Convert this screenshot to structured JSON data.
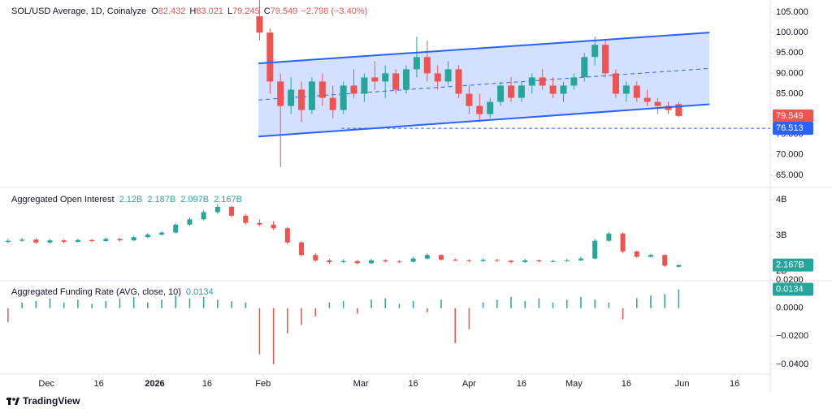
{
  "x_axis": {
    "xlim": [
      -13.3,
      207.2
    ],
    "xticks": [
      {
        "value": 0,
        "label": "Dec"
      },
      {
        "value": 15,
        "label": "16"
      },
      {
        "value": 31,
        "label": "2026"
      },
      {
        "value": 46,
        "label": "16"
      },
      {
        "value": 62,
        "label": "Feb"
      },
      {
        "value": 90,
        "label": "Mar"
      },
      {
        "value": 105,
        "label": "16"
      },
      {
        "value": 121,
        "label": "Apr"
      },
      {
        "value": 136,
        "label": "16"
      },
      {
        "value": 151,
        "label": "May"
      },
      {
        "value": 166,
        "label": "16"
      },
      {
        "value": 182,
        "label": "Jun"
      },
      {
        "value": 197,
        "label": "16"
      }
    ]
  },
  "chart_data": [
    {
      "type": "candlestick",
      "title": "SOL/USD Average, 1D, Coinalyze",
      "legend_keys": [
        "O",
        "H",
        "L",
        "C"
      ],
      "change": "−2.798 (−3.40%)",
      "up_color": "#26a69a",
      "down_color": "#ef5350",
      "x": [
        61,
        64,
        67,
        70,
        73,
        76,
        79,
        82,
        85,
        88,
        91,
        94,
        97,
        100,
        103,
        106,
        109,
        112,
        115,
        118,
        121,
        124,
        127,
        130,
        133,
        136,
        139,
        142,
        145,
        148,
        151,
        154,
        157,
        160,
        163,
        166,
        169,
        172,
        175,
        178,
        181
      ],
      "ohlc": [
        [
          104,
          108,
          98,
          100
        ],
        [
          100,
          101,
          85,
          88
        ],
        [
          88,
          90,
          67,
          82
        ],
        [
          82,
          89,
          80,
          86
        ],
        [
          86,
          88,
          78,
          81
        ],
        [
          81,
          89,
          80,
          88
        ],
        [
          88,
          90,
          82,
          84
        ],
        [
          84,
          87,
          79,
          81
        ],
        [
          81,
          88,
          80,
          87
        ],
        [
          87,
          91,
          84,
          85
        ],
        [
          85,
          90,
          83,
          89
        ],
        [
          89,
          93,
          86,
          88
        ],
        [
          88,
          92,
          84,
          90
        ],
        [
          90,
          91,
          85,
          86
        ],
        [
          86,
          92,
          85,
          91
        ],
        [
          91,
          99,
          89,
          94
        ],
        [
          94,
          98,
          88,
          90
        ],
        [
          90,
          92,
          86,
          88
        ],
        [
          88,
          93,
          87,
          91
        ],
        [
          91,
          92,
          84,
          85
        ],
        [
          85,
          87,
          80,
          82
        ],
        [
          82,
          85,
          78,
          80
        ],
        [
          80,
          84,
          79,
          83
        ],
        [
          83,
          88,
          82,
          87
        ],
        [
          87,
          89,
          83,
          84
        ],
        [
          84,
          88,
          83,
          87
        ],
        [
          87,
          90,
          85,
          89
        ],
        [
          89,
          91,
          86,
          87
        ],
        [
          87,
          89,
          84,
          85
        ],
        [
          85,
          88,
          83,
          87
        ],
        [
          87,
          90,
          86,
          89
        ],
        [
          89,
          95,
          88,
          94
        ],
        [
          94,
          99,
          92,
          97
        ],
        [
          97,
          98,
          89,
          90
        ],
        [
          90,
          91,
          84,
          85
        ],
        [
          85,
          88,
          83,
          87
        ],
        [
          87,
          88,
          83,
          84
        ],
        [
          84,
          86,
          82,
          83
        ],
        [
          83,
          84,
          80,
          82
        ],
        [
          82,
          83,
          80,
          81
        ],
        [
          82.432,
          83.021,
          79.245,
          79.549
        ]
      ],
      "ylim": [
        62.2,
        108
      ],
      "yticks": [
        {
          "value": 65,
          "label": "65.000"
        },
        {
          "value": 70,
          "label": "70.000"
        },
        {
          "value": 75,
          "label": "75.000"
        },
        {
          "value": 80,
          "label": "80.000"
        },
        {
          "value": 85,
          "label": "85.000"
        },
        {
          "value": 90,
          "label": "90.000"
        },
        {
          "value": 95,
          "label": "95.000"
        },
        {
          "value": 100,
          "label": "100.000"
        },
        {
          "value": 105,
          "label": "105.000"
        }
      ],
      "channel": {
        "x": [
          60.7,
          189.8
        ],
        "upper": [
          92.45,
          100.0
        ],
        "lower": [
          74.5,
          82.4
        ],
        "color": "#2962ff"
      },
      "hline": {
        "value": 76.513,
        "x_start": 84.4,
        "color": "#2962ff"
      }
    },
    {
      "type": "candlestick",
      "title": "Aggregated Open Interest",
      "up_color": "#26a69a",
      "down_color": "#ef5350",
      "x": [
        -11,
        -7,
        -3,
        1,
        5,
        9,
        13,
        17,
        21,
        25,
        29,
        33,
        37,
        41,
        45,
        49,
        53,
        57,
        61,
        65,
        69,
        73,
        77,
        81,
        85,
        89,
        93,
        97,
        101,
        105,
        109,
        113,
        117,
        121,
        125,
        129,
        133,
        137,
        141,
        145,
        149,
        153,
        157,
        161,
        165,
        169,
        173,
        177,
        181
      ],
      "ohlc": [
        [
          2.82,
          2.9,
          2.78,
          2.85
        ],
        [
          2.85,
          2.93,
          2.82,
          2.88
        ],
        [
          2.88,
          2.92,
          2.76,
          2.8
        ],
        [
          2.8,
          2.9,
          2.77,
          2.86
        ],
        [
          2.86,
          2.89,
          2.78,
          2.82
        ],
        [
          2.82,
          2.91,
          2.8,
          2.87
        ],
        [
          2.87,
          2.9,
          2.81,
          2.84
        ],
        [
          2.84,
          2.94,
          2.82,
          2.9
        ],
        [
          2.9,
          2.93,
          2.83,
          2.86
        ],
        [
          2.86,
          2.99,
          2.84,
          2.95
        ],
        [
          2.95,
          3.06,
          2.92,
          3.02
        ],
        [
          3.02,
          3.12,
          3.0,
          3.08
        ],
        [
          3.08,
          3.34,
          3.05,
          3.3
        ],
        [
          3.3,
          3.5,
          3.27,
          3.45
        ],
        [
          3.45,
          3.7,
          3.42,
          3.65
        ],
        [
          3.65,
          3.88,
          3.6,
          3.8
        ],
        [
          3.8,
          3.84,
          3.5,
          3.55
        ],
        [
          3.55,
          3.6,
          3.3,
          3.35
        ],
        [
          3.35,
          3.45,
          3.25,
          3.3
        ],
        [
          3.3,
          3.4,
          3.15,
          3.2
        ],
        [
          3.2,
          3.24,
          2.75,
          2.8
        ],
        [
          2.8,
          2.84,
          2.4,
          2.45
        ],
        [
          2.45,
          2.5,
          2.26,
          2.3
        ],
        [
          2.3,
          2.34,
          2.2,
          2.25
        ],
        [
          2.25,
          2.33,
          2.22,
          2.28
        ],
        [
          2.28,
          2.31,
          2.18,
          2.22
        ],
        [
          2.22,
          2.35,
          2.2,
          2.3
        ],
        [
          2.3,
          2.33,
          2.24,
          2.27
        ],
        [
          2.27,
          2.31,
          2.22,
          2.26
        ],
        [
          2.26,
          2.4,
          2.24,
          2.35
        ],
        [
          2.35,
          2.5,
          2.32,
          2.45
        ],
        [
          2.45,
          2.47,
          2.29,
          2.32
        ],
        [
          2.32,
          2.36,
          2.27,
          2.3
        ],
        [
          2.3,
          2.33,
          2.24,
          2.28
        ],
        [
          2.28,
          2.35,
          2.26,
          2.31
        ],
        [
          2.31,
          2.34,
          2.26,
          2.29
        ],
        [
          2.29,
          2.31,
          2.21,
          2.25
        ],
        [
          2.25,
          2.34,
          2.23,
          2.3
        ],
        [
          2.3,
          2.32,
          2.24,
          2.27
        ],
        [
          2.27,
          2.32,
          2.25,
          2.28
        ],
        [
          2.28,
          2.34,
          2.26,
          2.3
        ],
        [
          2.3,
          2.4,
          2.28,
          2.35
        ],
        [
          2.35,
          2.9,
          2.33,
          2.85
        ],
        [
          2.85,
          3.1,
          2.82,
          3.05
        ],
        [
          3.05,
          3.08,
          2.5,
          2.55
        ],
        [
          2.55,
          2.58,
          2.36,
          2.4
        ],
        [
          2.4,
          2.49,
          2.38,
          2.45
        ],
        [
          2.45,
          2.47,
          2.12,
          2.15
        ],
        [
          2.12,
          2.187,
          2.097,
          2.167
        ]
      ],
      "last_labels": [
        "2.12B",
        "2.187B",
        "2.097B",
        "2.167B"
      ],
      "ylim": [
        1.75,
        4.32
      ],
      "yticks": [
        {
          "value": 2,
          "label": "2B"
        },
        {
          "value": 3,
          "label": "3B"
        },
        {
          "value": 4,
          "label": "4B"
        }
      ]
    },
    {
      "type": "bar",
      "title": "Aggregated Funding Rate (AVG, close, 10)",
      "up_color": "#26a69a",
      "down_color": "#ef5350",
      "x": [
        -11,
        -7,
        -3,
        1,
        5,
        9,
        13,
        17,
        21,
        25,
        29,
        33,
        37,
        41,
        45,
        49,
        53,
        57,
        61,
        65,
        69,
        73,
        77,
        81,
        85,
        89,
        93,
        97,
        101,
        105,
        109,
        113,
        117,
        121,
        125,
        129,
        133,
        137,
        141,
        145,
        149,
        153,
        157,
        161,
        165,
        169,
        173,
        177,
        181
      ],
      "values": [
        -0.01,
        0.004,
        0.005,
        0.007,
        0.004,
        0.006,
        0.003,
        0.005,
        0.007,
        0.008,
        0.004,
        0.006,
        0.009,
        0.007,
        0.008,
        0.006,
        0.005,
        0.004,
        -0.033,
        -0.04,
        -0.018,
        -0.012,
        -0.006,
        0.004,
        0.005,
        -0.004,
        0.006,
        0.007,
        0.003,
        0.005,
        -0.003,
        0.006,
        -0.025,
        -0.015,
        0.004,
        0.006,
        0.008,
        0.005,
        0.007,
        0.004,
        0.006,
        0.008,
        0.006,
        0.004,
        -0.008,
        0.007,
        0.009,
        0.01,
        0.0134
      ],
      "ylim": [
        -0.0464,
        0.0189
      ],
      "yticks": [
        {
          "value": 0.02,
          "label": "0.0200"
        },
        {
          "value": 0,
          "label": "0.0000"
        },
        {
          "value": -0.02,
          "label": "−0.0200"
        },
        {
          "value": -0.04,
          "label": "−0.0400"
        }
      ]
    }
  ],
  "footer": {
    "brand": "TradingView"
  }
}
